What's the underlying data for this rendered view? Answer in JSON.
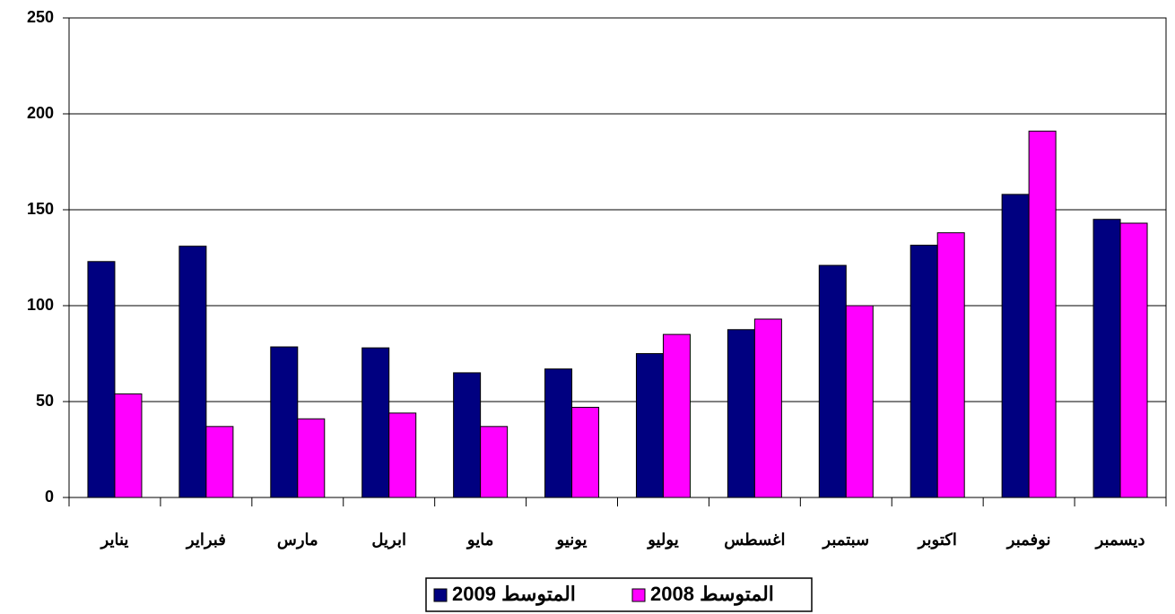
{
  "chart_data": {
    "type": "bar",
    "categories": [
      "يناير",
      "فبراير",
      "مارس",
      "ابريل",
      "مايو",
      "يونيو",
      "يوليو",
      "اغسطس",
      "سبتمبر",
      "اكتوبر",
      "نوفمبر",
      "ديسمبر"
    ],
    "series": [
      {
        "name": "المتوسط 2009",
        "color": "#000080",
        "values": [
          123,
          131,
          78.5,
          78,
          65,
          67,
          75,
          87.5,
          121,
          131.5,
          158,
          145
        ]
      },
      {
        "name": "المتوسط 2008",
        "color": "#ff00ff",
        "values": [
          54,
          37,
          41,
          44,
          37,
          47,
          85,
          93,
          100,
          138,
          191,
          143
        ]
      }
    ],
    "ylim": [
      0,
      250
    ],
    "yticks": [
      0,
      50,
      100,
      150,
      200,
      250
    ],
    "grid": true,
    "legend": "bottom"
  }
}
